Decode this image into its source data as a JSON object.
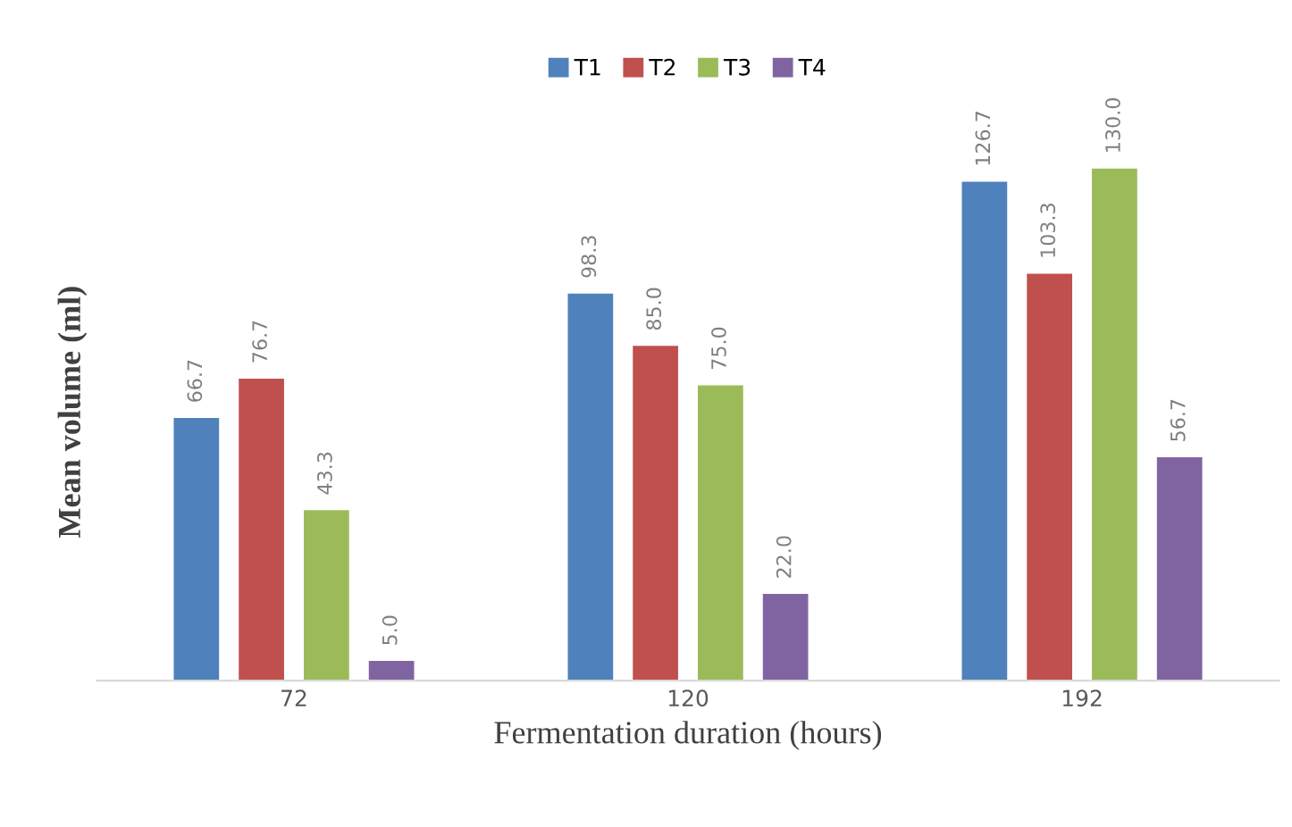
{
  "chart_data": {
    "type": "bar",
    "xlabel": "Fermentation duration (hours)",
    "ylabel": "Mean volume (ml)",
    "categories": [
      "72",
      "120",
      "192"
    ],
    "series": [
      {
        "name": "T1",
        "color": "#4f81bd",
        "values": [
          66.7,
          98.3,
          126.7
        ],
        "value_labels": [
          "66.7",
          "98.3",
          "126.7"
        ]
      },
      {
        "name": "T2",
        "color": "#c0504d",
        "values": [
          76.7,
          85.0,
          103.3
        ],
        "value_labels": [
          "76.7",
          "85.0",
          "103.3"
        ]
      },
      {
        "name": "T3",
        "color": "#9bbb59",
        "values": [
          43.3,
          75.0,
          130.0
        ],
        "value_labels": [
          "43.3",
          "75.0",
          "130.0"
        ]
      },
      {
        "name": "T4",
        "color": "#8064a2",
        "values": [
          5.0,
          22.0,
          56.7
        ],
        "value_labels": [
          "5.0",
          "22.0",
          "56.7"
        ]
      }
    ],
    "tick_labels": "x",
    "legend": "top"
  }
}
